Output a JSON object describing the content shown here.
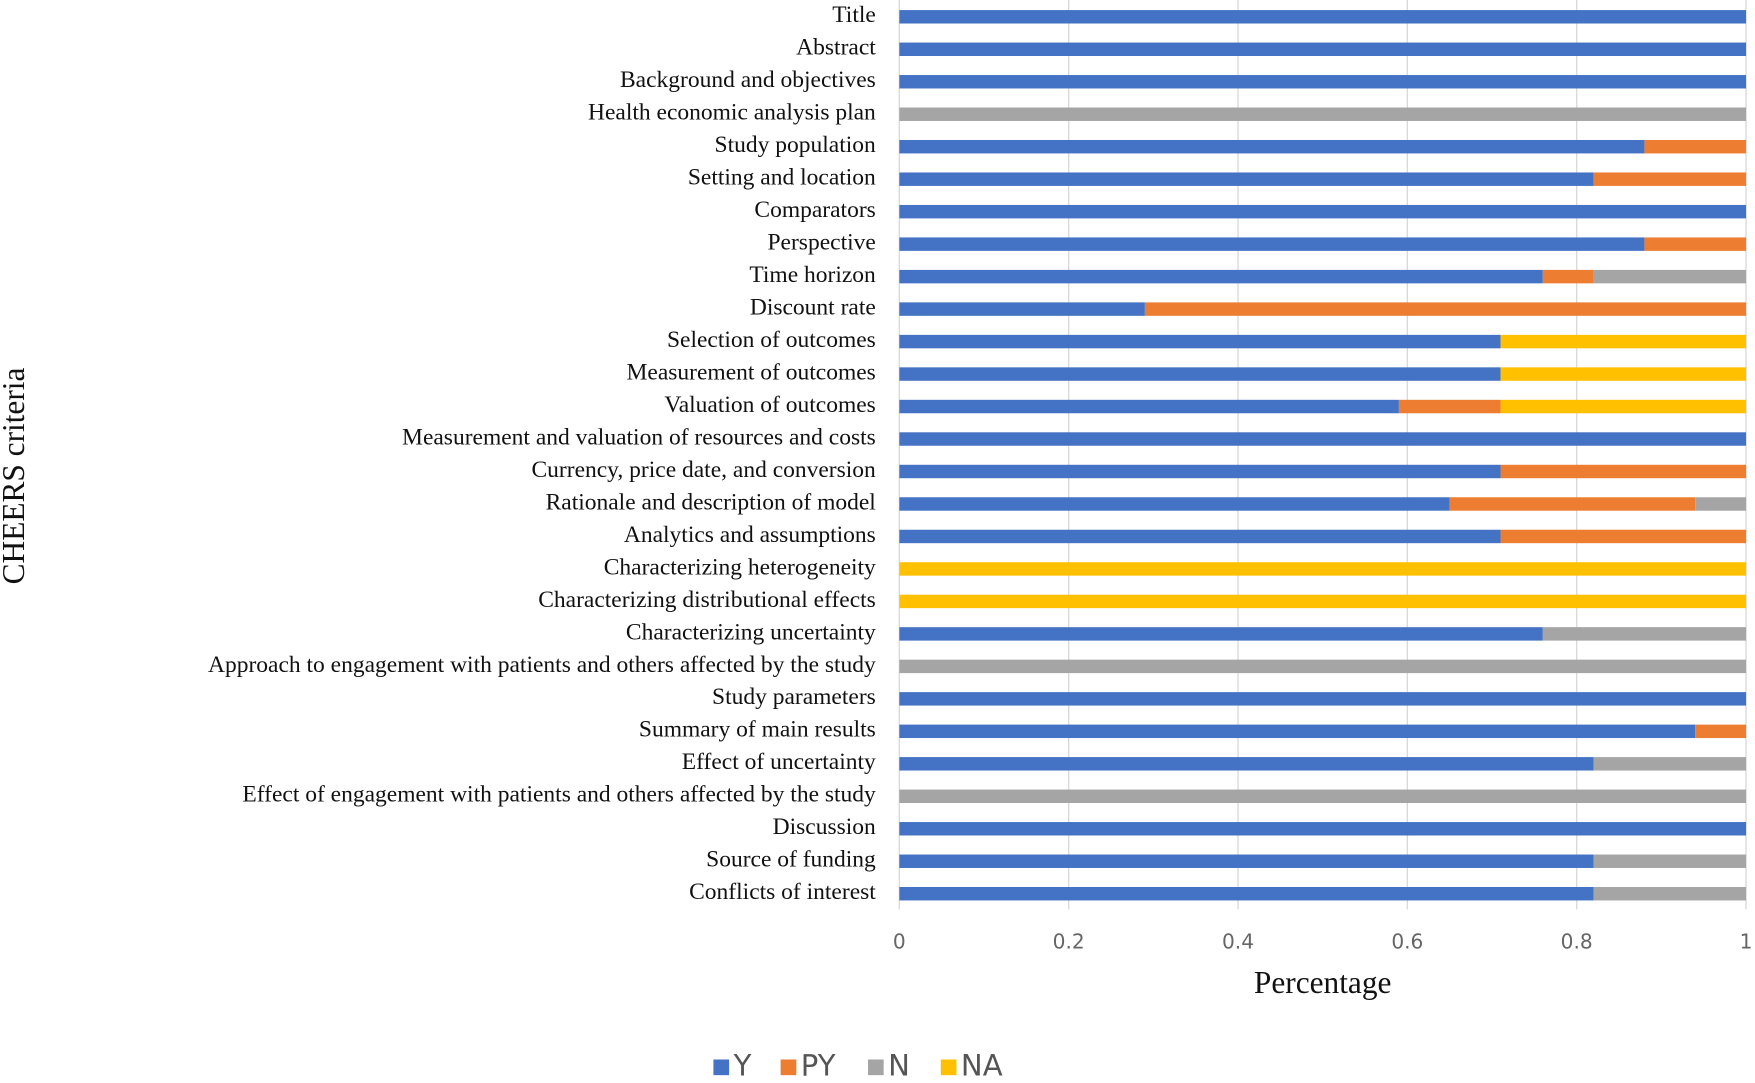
{
  "chart_data": {
    "type": "stacked_barh",
    "x_label": "Percentage",
    "y_label": "CHEERS criteria",
    "categories": [
      "Title",
      "Abstract",
      "Background and objectives",
      "Health economic analysis plan",
      "Study population",
      "Setting and location",
      "Comparators",
      "Perspective",
      "Time horizon",
      "Discount rate",
      "Selection of outcomes",
      "Measurement of outcomes",
      "Valuation of outcomes",
      "Measurement and valuation of resources and costs",
      "Currency, price date, and conversion",
      "Rationale and description of model",
      "Analytics and assumptions",
      "Characterizing heterogeneity",
      "Characterizing distributional effects",
      "Characterizing uncertainty",
      "Approach to engagement with patients and others affected by the study",
      "Study parameters",
      "Summary of main results",
      "Effect of uncertainty",
      "Effect of engagement with patients and others affected by the study",
      "Discussion",
      "Source of funding",
      "Conflicts of interest"
    ],
    "series": [
      {
        "name": "Y",
        "color": "#4472c4",
        "values": [
          1,
          1,
          1,
          0,
          0.88,
          0.82,
          1,
          0.88,
          0.76,
          0.29,
          0.71,
          0.71,
          0.59,
          1,
          0.71,
          0.65,
          0.71,
          0,
          0,
          0.76,
          0,
          1,
          0.94,
          0.82,
          0,
          1,
          0.82,
          0.82
        ]
      },
      {
        "name": "PY",
        "color": "#ed7d31",
        "values": [
          0,
          0,
          0,
          0,
          0.12,
          0.18,
          0,
          0.12,
          0.06,
          0.71,
          0,
          0,
          0.12,
          0,
          0.29,
          0.29,
          0.29,
          0,
          0,
          0,
          0,
          0,
          0.06,
          0,
          0,
          0,
          0,
          0
        ]
      },
      {
        "name": "N",
        "color": "#a5a5a5",
        "values": [
          0,
          0,
          0,
          1,
          0,
          0,
          0,
          0,
          0.18,
          0,
          0,
          0,
          0,
          0,
          0,
          0.06,
          0,
          0,
          0,
          0.24,
          1,
          0,
          0,
          0.18,
          1,
          0,
          0.18,
          0.18
        ]
      },
      {
        "name": "NA",
        "color": "#ffc000",
        "values": [
          0,
          0,
          0,
          0,
          0,
          0,
          0,
          0,
          0,
          0,
          0.29,
          0.29,
          0.29,
          0,
          0,
          0,
          0,
          1,
          1,
          0,
          0,
          0,
          0,
          0,
          0,
          0,
          0,
          0
        ]
      }
    ],
    "xlim": [
      0,
      1
    ],
    "xticks": [
      0,
      0.2,
      0.4,
      0.6,
      0.8,
      1
    ],
    "grid": true,
    "legend": "bottom"
  }
}
